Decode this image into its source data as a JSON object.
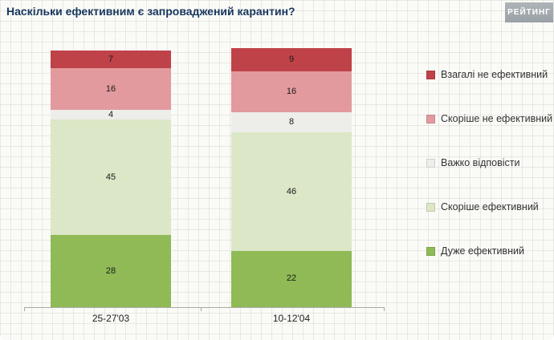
{
  "title": "Наскільки ефективним є запроваджений карантин?",
  "logo": "РЕЙТИНГ",
  "chart_data": {
    "type": "bar",
    "stacked": true,
    "orientation": "vertical",
    "title": "Наскільки ефективним є запроваджений карантин?",
    "categories": [
      "25-27'03",
      "10-12'04"
    ],
    "series": [
      {
        "name": "Дуже ефективний",
        "color": "#8fba56",
        "values": [
          28,
          22
        ]
      },
      {
        "name": "Скоріше ефективний",
        "color": "#dbe7c6",
        "values": [
          45,
          46
        ]
      },
      {
        "name": "Важко відповісти",
        "color": "#ededea",
        "values": [
          4,
          8
        ]
      },
      {
        "name": "Скоріше не ефективний",
        "color": "#e29a9e",
        "values": [
          16,
          16
        ]
      },
      {
        "name": "Взагалі не ефективний",
        "color": "#bf4249",
        "values": [
          7,
          9
        ]
      }
    ],
    "legend_order": [
      "Взагалі не ефективний",
      "Скоріше не ефективний",
      "Важко відповісти",
      "Скоріше ефективний",
      "Дуже ефективний"
    ],
    "legend_position": "right",
    "value_labels": true,
    "ylim": [
      0,
      100
    ],
    "grid": "paper-background"
  }
}
